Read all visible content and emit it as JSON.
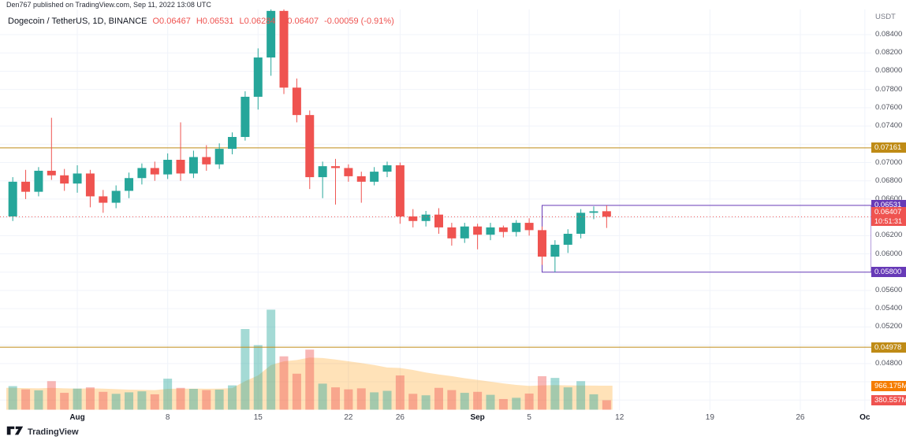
{
  "attribution": "Den767 published on TradingView.com, Sep 11, 2022 13:08 UTC",
  "legend": {
    "symbol": "Dogecoin / TetherUS, 1D, BINANCE",
    "open_label": "O",
    "open": "0.06467",
    "high_label": "H",
    "high": "0.06531",
    "low_label": "L",
    "low": "0.06284",
    "close_label": "C",
    "close": "0.06407",
    "change": "-0.00059 (-0.91%)"
  },
  "price_axis": {
    "currency": "USDT",
    "tick_min": 0.044,
    "tick_max": 0.084,
    "tick_step": 0.002,
    "labels": [
      {
        "name": "price-label-gold-upper",
        "text": "0.07161",
        "price": 0.07161,
        "bg": "#bf8b16"
      },
      {
        "name": "price-label-box-top",
        "text": "0.06531",
        "price": 0.06531,
        "bg": "#673ab7"
      },
      {
        "name": "price-label-last",
        "text": "0.06407",
        "price": 0.06407,
        "bg": "#ef5350",
        "countdown": "10:51:31"
      },
      {
        "name": "price-label-box-bottom",
        "text": "0.05800",
        "price": 0.058,
        "bg": "#673ab7"
      },
      {
        "name": "price-label-gold-lower",
        "text": "0.04978",
        "price": 0.04978,
        "bg": "#bf8b16"
      },
      {
        "name": "volume-ma-label",
        "text": "966.175M",
        "volume_m": 966.175,
        "bg": "#f57c00"
      },
      {
        "name": "volume-label",
        "text": "380.557M",
        "volume_m": 380.557,
        "bg": "#ef5350"
      }
    ]
  },
  "time_axis": {
    "labels": [
      {
        "text": "Aug",
        "day": 5,
        "month": true
      },
      {
        "text": "8",
        "day": 12
      },
      {
        "text": "15",
        "day": 19
      },
      {
        "text": "22",
        "day": 26
      },
      {
        "text": "26",
        "day": 30
      },
      {
        "text": "Sep",
        "day": 36,
        "month": true
      },
      {
        "text": "5",
        "day": 40
      },
      {
        "text": "12",
        "day": 47
      },
      {
        "text": "19",
        "day": 54
      },
      {
        "text": "26",
        "day": 61
      },
      {
        "text": "Oc",
        "day": 66,
        "month": true
      }
    ]
  },
  "chart_data": {
    "type": "candlestick",
    "title": "Dogecoin / TetherUS, 1D, BINANCE",
    "symbol": "Dogecoin / TetherUS",
    "interval": "1D",
    "exchange": "BINANCE",
    "ylim": [
      0.0429,
      0.08676
    ],
    "total_day_slots": 67,
    "grid": true,
    "volume_max_m": 4440,
    "levels": {
      "gold": [
        0.07161,
        0.04978
      ],
      "purple_box": {
        "top": 0.06531,
        "bottom": 0.058,
        "start_day": 41
      },
      "last_price": 0.06407,
      "last_price_color": "#ef5350"
    },
    "candles": [
      {
        "d": "Jul 27",
        "o": 0.0641,
        "h": 0.0684,
        "l": 0.0636,
        "c": 0.0679,
        "v": 950
      },
      {
        "d": "Jul 28",
        "o": 0.0679,
        "h": 0.0692,
        "l": 0.066,
        "c": 0.0668,
        "v": 820
      },
      {
        "d": "Jul 29",
        "o": 0.0668,
        "h": 0.0695,
        "l": 0.0663,
        "c": 0.0691,
        "v": 780
      },
      {
        "d": "Jul 30",
        "o": 0.0691,
        "h": 0.0749,
        "l": 0.0681,
        "c": 0.0686,
        "v": 1150
      },
      {
        "d": "Jul 31",
        "o": 0.0686,
        "h": 0.0693,
        "l": 0.0669,
        "c": 0.0677,
        "v": 680
      },
      {
        "d": "Aug 1",
        "o": 0.0677,
        "h": 0.0697,
        "l": 0.0667,
        "c": 0.0688,
        "v": 850
      },
      {
        "d": "Aug 2",
        "o": 0.0688,
        "h": 0.0692,
        "l": 0.0651,
        "c": 0.0663,
        "v": 900
      },
      {
        "d": "Aug 3",
        "o": 0.0663,
        "h": 0.067,
        "l": 0.0645,
        "c": 0.0656,
        "v": 720
      },
      {
        "d": "Aug 4",
        "o": 0.0656,
        "h": 0.0675,
        "l": 0.065,
        "c": 0.0669,
        "v": 640
      },
      {
        "d": "Aug 5",
        "o": 0.0669,
        "h": 0.0689,
        "l": 0.0661,
        "c": 0.0683,
        "v": 700
      },
      {
        "d": "Aug 6",
        "o": 0.0683,
        "h": 0.0699,
        "l": 0.0676,
        "c": 0.0694,
        "v": 740
      },
      {
        "d": "Aug 7",
        "o": 0.0694,
        "h": 0.0701,
        "l": 0.068,
        "c": 0.0687,
        "v": 620
      },
      {
        "d": "Aug 8",
        "o": 0.0687,
        "h": 0.071,
        "l": 0.0682,
        "c": 0.0703,
        "v": 1250
      },
      {
        "d": "Aug 9",
        "o": 0.0703,
        "h": 0.0744,
        "l": 0.068,
        "c": 0.0688,
        "v": 880
      },
      {
        "d": "Aug 10",
        "o": 0.0688,
        "h": 0.0713,
        "l": 0.0683,
        "c": 0.0706,
        "v": 840
      },
      {
        "d": "Aug 11",
        "o": 0.0706,
        "h": 0.0719,
        "l": 0.0691,
        "c": 0.0698,
        "v": 790
      },
      {
        "d": "Aug 12",
        "o": 0.0698,
        "h": 0.0721,
        "l": 0.0693,
        "c": 0.0715,
        "v": 810
      },
      {
        "d": "Aug 13",
        "o": 0.0715,
        "h": 0.0733,
        "l": 0.0709,
        "c": 0.0728,
        "v": 980
      },
      {
        "d": "Aug 14",
        "o": 0.0728,
        "h": 0.0778,
        "l": 0.0724,
        "c": 0.0772,
        "v": 3250
      },
      {
        "d": "Aug 15",
        "o": 0.0772,
        "h": 0.0825,
        "l": 0.0758,
        "c": 0.0815,
        "v": 2600
      },
      {
        "d": "Aug 16",
        "o": 0.0815,
        "h": 0.0873,
        "l": 0.0795,
        "c": 0.0866,
        "v": 4030
      },
      {
        "d": "Aug 17",
        "o": 0.0866,
        "h": 0.0871,
        "l": 0.0775,
        "c": 0.0782,
        "v": 2150
      },
      {
        "d": "Aug 18",
        "o": 0.0782,
        "h": 0.0792,
        "l": 0.0744,
        "c": 0.0752,
        "v": 1450
      },
      {
        "d": "Aug 19",
        "o": 0.0752,
        "h": 0.0757,
        "l": 0.0671,
        "c": 0.0684,
        "v": 2420
      },
      {
        "d": "Aug 20",
        "o": 0.0684,
        "h": 0.0701,
        "l": 0.0661,
        "c": 0.0696,
        "v": 1050
      },
      {
        "d": "Aug 21",
        "o": 0.0696,
        "h": 0.0704,
        "l": 0.0654,
        "c": 0.0694,
        "v": 900
      },
      {
        "d": "Aug 22",
        "o": 0.0694,
        "h": 0.0698,
        "l": 0.0679,
        "c": 0.0685,
        "v": 820
      },
      {
        "d": "Aug 23",
        "o": 0.0685,
        "h": 0.069,
        "l": 0.0656,
        "c": 0.0679,
        "v": 860
      },
      {
        "d": "Aug 24",
        "o": 0.0679,
        "h": 0.0695,
        "l": 0.0675,
        "c": 0.069,
        "v": 700
      },
      {
        "d": "Aug 25",
        "o": 0.069,
        "h": 0.0701,
        "l": 0.0684,
        "c": 0.0697,
        "v": 760
      },
      {
        "d": "Aug 26",
        "o": 0.0697,
        "h": 0.07,
        "l": 0.0633,
        "c": 0.0641,
        "v": 1380
      },
      {
        "d": "Aug 27",
        "o": 0.0641,
        "h": 0.0649,
        "l": 0.0629,
        "c": 0.0636,
        "v": 640
      },
      {
        "d": "Aug 28",
        "o": 0.0636,
        "h": 0.0647,
        "l": 0.063,
        "c": 0.0643,
        "v": 580
      },
      {
        "d": "Aug 29",
        "o": 0.0643,
        "h": 0.065,
        "l": 0.0622,
        "c": 0.0629,
        "v": 880
      },
      {
        "d": "Aug 30",
        "o": 0.0629,
        "h": 0.0634,
        "l": 0.0609,
        "c": 0.0617,
        "v": 790
      },
      {
        "d": "Aug 31",
        "o": 0.0617,
        "h": 0.0634,
        "l": 0.0612,
        "c": 0.063,
        "v": 680
      },
      {
        "d": "Sep 1",
        "o": 0.063,
        "h": 0.0633,
        "l": 0.0605,
        "c": 0.0621,
        "v": 720
      },
      {
        "d": "Sep 2",
        "o": 0.0621,
        "h": 0.0634,
        "l": 0.0615,
        "c": 0.0629,
        "v": 600
      },
      {
        "d": "Sep 3",
        "o": 0.0629,
        "h": 0.0631,
        "l": 0.0618,
        "c": 0.0624,
        "v": 430
      },
      {
        "d": "Sep 4",
        "o": 0.0624,
        "h": 0.0637,
        "l": 0.0619,
        "c": 0.0634,
        "v": 480
      },
      {
        "d": "Sep 5",
        "o": 0.0634,
        "h": 0.0639,
        "l": 0.062,
        "c": 0.0626,
        "v": 650
      },
      {
        "d": "Sep 6",
        "o": 0.0626,
        "h": 0.063,
        "l": 0.0588,
        "c": 0.0597,
        "v": 1350
      },
      {
        "d": "Sep 7",
        "o": 0.0597,
        "h": 0.0615,
        "l": 0.058,
        "c": 0.061,
        "v": 1280
      },
      {
        "d": "Sep 8",
        "o": 0.061,
        "h": 0.0627,
        "l": 0.0601,
        "c": 0.0622,
        "v": 900
      },
      {
        "d": "Sep 9",
        "o": 0.0622,
        "h": 0.0649,
        "l": 0.0617,
        "c": 0.0645,
        "v": 1150
      },
      {
        "d": "Sep 10",
        "o": 0.0645,
        "h": 0.0652,
        "l": 0.0638,
        "c": 0.06466,
        "v": 620
      },
      {
        "d": "Sep 11",
        "o": 0.06467,
        "h": 0.06531,
        "l": 0.06284,
        "c": 0.06407,
        "v": 380.557
      }
    ],
    "volume_ma_m": [
      880,
      870,
      860,
      880,
      860,
      850,
      860,
      850,
      830,
      810,
      800,
      790,
      840,
      850,
      850,
      845,
      850,
      870,
      1150,
      1380,
      1800,
      1950,
      2000,
      2100,
      2080,
      2020,
      1950,
      1880,
      1800,
      1700,
      1680,
      1600,
      1500,
      1420,
      1350,
      1270,
      1200,
      1130,
      1060,
      1000,
      960,
      980,
      990,
      980,
      975,
      970,
      966.175
    ]
  },
  "footer": {
    "text": "TradingView"
  },
  "colors": {
    "up": "#26a69a",
    "down": "#ef5350",
    "vol_up": "rgba(38,166,154,0.42)",
    "vol_down": "rgba(239,83,80,0.42)",
    "vol_ma_fill": "rgba(255,152,0,0.28)",
    "grid": "#f0f3fa",
    "axis_border": "#d6dade",
    "gold": "#bf8b16",
    "purple": "#673ab7"
  }
}
